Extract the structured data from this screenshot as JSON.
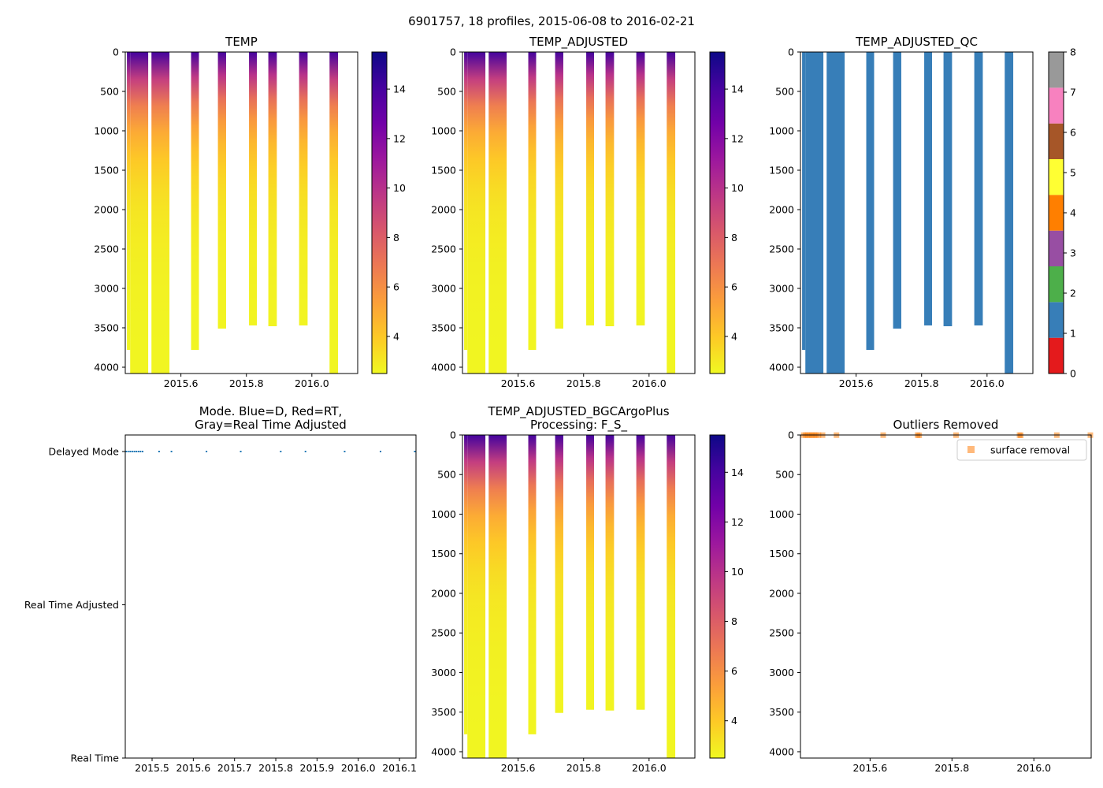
{
  "figure": {
    "title": "6901757, 18 profiles, 2015-06-08 to 2016-02-21"
  },
  "colors": {
    "plasma": [
      "#0d0887",
      "#46039f",
      "#7201a8",
      "#9c179e",
      "#bd3786",
      "#d8576b",
      "#ed7953",
      "#fb9f3a",
      "#fdca26",
      "#f0f921"
    ],
    "qc": [
      "#e41a1c",
      "#377eb8",
      "#4daf4a",
      "#984ea3",
      "#ff7f00",
      "#ffff33",
      "#a65628",
      "#f781bf",
      "#999999"
    ],
    "mode_points": "#1f77b4",
    "outlier": "#ff7f0e"
  },
  "chart_data": [
    {
      "id": "temp",
      "type": "heatmap",
      "title": "TEMP",
      "xlim": [
        2015.43,
        2016.14
      ],
      "ylim": [
        4080,
        0
      ],
      "xticks": [
        2015.6,
        2015.8,
        2016.0
      ],
      "xtick_labels": [
        "2015.6",
        "2015.8",
        "2016.0"
      ],
      "yticks": [
        0,
        500,
        1000,
        1500,
        2000,
        2500,
        3000,
        3500,
        4000
      ],
      "ytick_labels": [
        "0",
        "500",
        "1000",
        "1500",
        "2000",
        "2500",
        "3000",
        "3500",
        "4000"
      ],
      "clim": [
        2.5,
        15.5
      ],
      "cbar_ticks": [
        4,
        6,
        8,
        10,
        12,
        14
      ],
      "cbar_tick_labels": [
        "4",
        "6",
        "8",
        "10",
        "12",
        "14"
      ],
      "profiles": [
        {
          "x0": 2015.435,
          "x1": 2015.445,
          "max_depth": 3780
        },
        {
          "x0": 2015.445,
          "x1": 2015.5,
          "max_depth": 4080
        },
        {
          "x0": 2015.51,
          "x1": 2015.565,
          "max_depth": 4080
        },
        {
          "x0": 2015.631,
          "x1": 2015.655,
          "max_depth": 3780
        },
        {
          "x0": 2015.713,
          "x1": 2015.738,
          "max_depth": 3510
        },
        {
          "x0": 2015.808,
          "x1": 2015.832,
          "max_depth": 3470
        },
        {
          "x0": 2015.867,
          "x1": 2015.893,
          "max_depth": 3480
        },
        {
          "x0": 2015.961,
          "x1": 2015.987,
          "max_depth": 3470
        },
        {
          "x0": 2016.054,
          "x1": 2016.08,
          "max_depth": 4080
        }
      ]
    },
    {
      "id": "temp_adjusted",
      "type": "heatmap",
      "title": "TEMP_ADJUSTED",
      "xlim": [
        2015.43,
        2016.14
      ],
      "ylim": [
        4080,
        0
      ],
      "xticks": [
        2015.6,
        2015.8,
        2016.0
      ],
      "xtick_labels": [
        "2015.6",
        "2015.8",
        "2016.0"
      ],
      "yticks": [
        0,
        500,
        1000,
        1500,
        2000,
        2500,
        3000,
        3500,
        4000
      ],
      "ytick_labels": [
        "0",
        "500",
        "1000",
        "1500",
        "2000",
        "2500",
        "3000",
        "3500",
        "4000"
      ],
      "clim": [
        2.5,
        15.5
      ],
      "cbar_ticks": [
        4,
        6,
        8,
        10,
        12,
        14
      ],
      "cbar_tick_labels": [
        "4",
        "6",
        "8",
        "10",
        "12",
        "14"
      ],
      "profiles": [
        {
          "x0": 2015.435,
          "x1": 2015.445,
          "max_depth": 3780
        },
        {
          "x0": 2015.445,
          "x1": 2015.5,
          "max_depth": 4080
        },
        {
          "x0": 2015.51,
          "x1": 2015.565,
          "max_depth": 4080
        },
        {
          "x0": 2015.631,
          "x1": 2015.655,
          "max_depth": 3780
        },
        {
          "x0": 2015.713,
          "x1": 2015.738,
          "max_depth": 3510
        },
        {
          "x0": 2015.808,
          "x1": 2015.832,
          "max_depth": 3470
        },
        {
          "x0": 2015.867,
          "x1": 2015.893,
          "max_depth": 3480
        },
        {
          "x0": 2015.961,
          "x1": 2015.987,
          "max_depth": 3470
        },
        {
          "x0": 2016.054,
          "x1": 2016.08,
          "max_depth": 4080
        }
      ]
    },
    {
      "id": "temp_adjusted_qc",
      "type": "heatmap",
      "title": "TEMP_ADJUSTED_QC",
      "xlim": [
        2015.43,
        2016.14
      ],
      "ylim": [
        4080,
        0
      ],
      "xticks": [
        2015.6,
        2015.8,
        2016.0
      ],
      "xtick_labels": [
        "2015.6",
        "2015.8",
        "2016.0"
      ],
      "yticks": [
        0,
        500,
        1000,
        1500,
        2000,
        2500,
        3000,
        3500,
        4000
      ],
      "ytick_labels": [
        "0",
        "500",
        "1000",
        "1500",
        "2000",
        "2500",
        "3000",
        "3500",
        "4000"
      ],
      "qc_value": 1,
      "cbar_ticks": [
        0,
        1,
        2,
        3,
        4,
        5,
        6,
        7,
        8
      ],
      "cbar_tick_labels": [
        "0",
        "1",
        "2",
        "3",
        "4",
        "5",
        "6",
        "7",
        "8"
      ],
      "profiles": [
        {
          "x0": 2015.435,
          "x1": 2015.445,
          "max_depth": 3780
        },
        {
          "x0": 2015.445,
          "x1": 2015.5,
          "max_depth": 4080
        },
        {
          "x0": 2015.51,
          "x1": 2015.565,
          "max_depth": 4080
        },
        {
          "x0": 2015.631,
          "x1": 2015.655,
          "max_depth": 3780
        },
        {
          "x0": 2015.713,
          "x1": 2015.738,
          "max_depth": 3510
        },
        {
          "x0": 2015.808,
          "x1": 2015.832,
          "max_depth": 3470
        },
        {
          "x0": 2015.867,
          "x1": 2015.893,
          "max_depth": 3480
        },
        {
          "x0": 2015.961,
          "x1": 2015.987,
          "max_depth": 3470
        },
        {
          "x0": 2016.054,
          "x1": 2016.08,
          "max_depth": 4080
        }
      ]
    },
    {
      "id": "mode",
      "type": "scatter",
      "title_lines": [
        "Mode. Blue=D, Red=RT,",
        "Gray=Real Time Adjusted"
      ],
      "xlim": [
        2015.435,
        2016.14
      ],
      "ylim": [
        0,
        2
      ],
      "xticks": [
        2015.5,
        2015.6,
        2015.7,
        2015.8,
        2015.9,
        2016.0,
        2016.1
      ],
      "xtick_labels": [
        "2015.5",
        "2015.6",
        "2015.7",
        "2015.8",
        "2015.9",
        "2016.0",
        "2016.1"
      ],
      "yticks": [
        2,
        1,
        0
      ],
      "ytick_labels": [
        "Delayed Mode",
        "Real Time Adjusted",
        "Real Time"
      ],
      "points_x": [
        2015.437,
        2015.442,
        2015.447,
        2015.452,
        2015.457,
        2015.462,
        2015.467,
        2015.472,
        2015.477,
        2015.517,
        2015.547,
        2015.632,
        2015.715,
        2015.812,
        2015.872,
        2015.967,
        2016.054,
        2016.137
      ],
      "points_y": [
        2,
        2,
        2,
        2,
        2,
        2,
        2,
        2,
        2,
        2,
        2,
        2,
        2,
        2,
        2,
        2,
        2,
        2
      ]
    },
    {
      "id": "temp_adjusted_bgc",
      "type": "heatmap",
      "title_lines": [
        "TEMP_ADJUSTED_BGCArgoPlus",
        "Processing: F_S_"
      ],
      "xlim": [
        2015.43,
        2016.14
      ],
      "ylim": [
        4080,
        0
      ],
      "xticks": [
        2015.6,
        2015.8,
        2016.0
      ],
      "xtick_labels": [
        "2015.6",
        "2015.8",
        "2016.0"
      ],
      "yticks": [
        0,
        500,
        1000,
        1500,
        2000,
        2500,
        3000,
        3500,
        4000
      ],
      "ytick_labels": [
        "0",
        "500",
        "1000",
        "1500",
        "2000",
        "2500",
        "3000",
        "3500",
        "4000"
      ],
      "clim": [
        2.5,
        15.5
      ],
      "cbar_ticks": [
        4,
        6,
        8,
        10,
        12,
        14
      ],
      "cbar_tick_labels": [
        "4",
        "6",
        "8",
        "10",
        "12",
        "14"
      ],
      "profiles": [
        {
          "x0": 2015.435,
          "x1": 2015.445,
          "max_depth": 3780
        },
        {
          "x0": 2015.445,
          "x1": 2015.5,
          "max_depth": 4080
        },
        {
          "x0": 2015.51,
          "x1": 2015.565,
          "max_depth": 4080
        },
        {
          "x0": 2015.631,
          "x1": 2015.655,
          "max_depth": 3780
        },
        {
          "x0": 2015.713,
          "x1": 2015.738,
          "max_depth": 3510
        },
        {
          "x0": 2015.808,
          "x1": 2015.832,
          "max_depth": 3470
        },
        {
          "x0": 2015.867,
          "x1": 2015.893,
          "max_depth": 3480
        },
        {
          "x0": 2015.961,
          "x1": 2015.987,
          "max_depth": 3470
        },
        {
          "x0": 2016.054,
          "x1": 2016.08,
          "max_depth": 4080
        }
      ]
    },
    {
      "id": "outliers",
      "type": "scatter",
      "title": "Outliers Removed",
      "xlim": [
        2015.43,
        2016.14
      ],
      "ylim": [
        4080,
        0
      ],
      "xticks": [
        2015.6,
        2015.8,
        2016.0
      ],
      "xtick_labels": [
        "2015.6",
        "2015.8",
        "2016.0"
      ],
      "yticks": [
        0,
        500,
        1000,
        1500,
        2000,
        2500,
        3000,
        3500,
        4000
      ],
      "ytick_labels": [
        "0",
        "500",
        "1000",
        "1500",
        "2000",
        "2500",
        "3000",
        "3500",
        "4000"
      ],
      "legend": {
        "label": "surface removal",
        "position": "top-right"
      },
      "points_x": [
        2015.438,
        2015.443,
        2015.448,
        2015.453,
        2015.458,
        2015.463,
        2015.468,
        2015.474,
        2015.484,
        2015.518,
        2015.632,
        2015.716,
        2015.72,
        2015.81,
        2015.965,
        2015.968,
        2016.056,
        2016.138
      ],
      "points_y": [
        2,
        2,
        2,
        2,
        2,
        2,
        2,
        2,
        2,
        2,
        2,
        2,
        4,
        2,
        2,
        4,
        2,
        2
      ]
    }
  ]
}
